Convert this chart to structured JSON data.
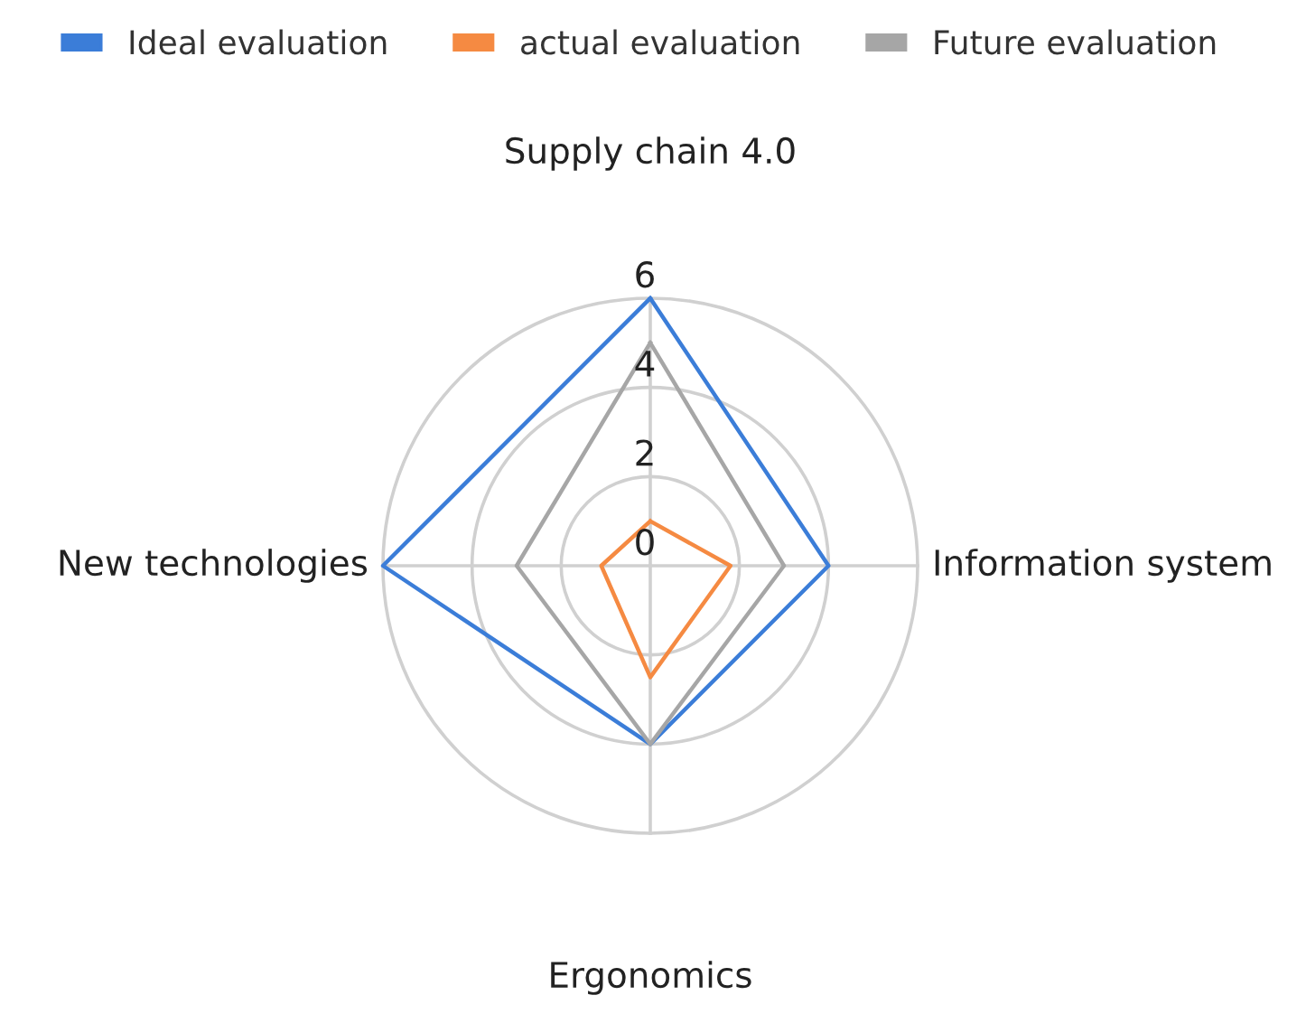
{
  "chart_data": {
    "type": "radar",
    "categories": [
      "Supply chain 4.0",
      "Information system",
      "Ergonomics",
      "New technologies"
    ],
    "series": [
      {
        "name": "Ideal evaluation",
        "color": "#3b7dd8",
        "values": [
          6,
          4,
          4,
          6
        ]
      },
      {
        "name": "actual evaluation",
        "color": "#f58a42",
        "values": [
          1,
          1.8,
          2.5,
          1.1
        ]
      },
      {
        "name": "Future evaluation",
        "color": "#a6a6a6",
        "values": [
          5,
          3,
          4,
          3
        ]
      }
    ],
    "ylim": [
      0,
      6
    ],
    "yticks": [
      0,
      2,
      4,
      6
    ],
    "grid": true,
    "legend": "top",
    "marker": "none",
    "line_style": "solid"
  }
}
